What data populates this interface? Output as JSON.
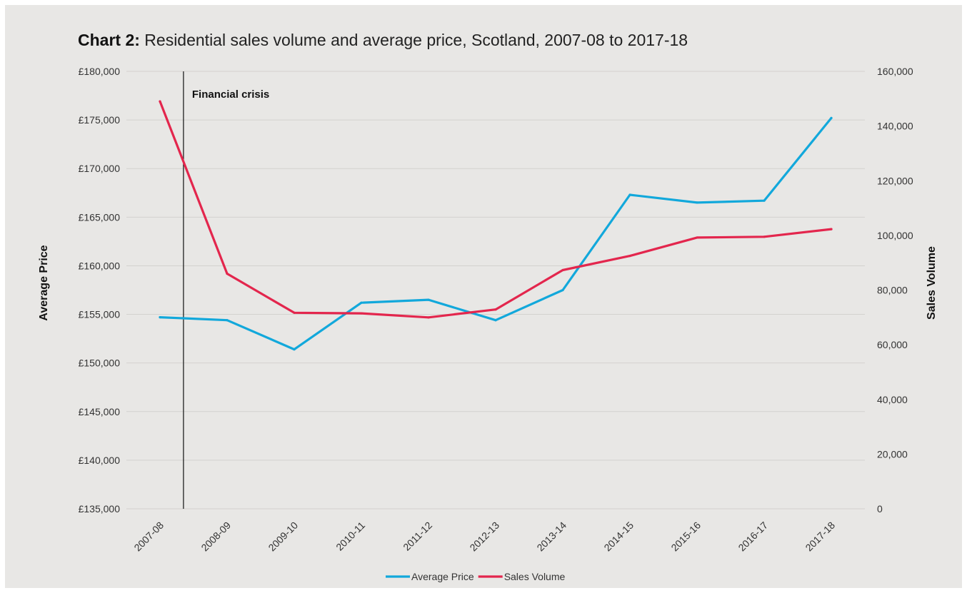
{
  "chart_data": {
    "type": "line",
    "title_prefix": "Chart 2:",
    "title": "Residential sales volume and average price, Scotland, 2007-08 to 2017-18",
    "categories": [
      "2007-08",
      "2008-09",
      "2009-10",
      "2010-11",
      "2011-12",
      "2012-13",
      "2013-14",
      "2014-15",
      "2015-16",
      "2016-17",
      "2017-18"
    ],
    "y_left": {
      "label": "Average Price",
      "range": [
        135000,
        180000
      ],
      "ticks": [
        135000,
        140000,
        145000,
        150000,
        155000,
        160000,
        165000,
        170000,
        175000,
        180000
      ],
      "tick_labels": [
        "£135,000",
        "£140,000",
        "£145,000",
        "£150,000",
        "£155,000",
        "£160,000",
        "£165,000",
        "£170,000",
        "£175,000",
        "£180,000"
      ]
    },
    "y_right": {
      "label": "Sales Volume",
      "range": [
        0,
        160000
      ],
      "ticks": [
        0,
        20000,
        40000,
        60000,
        80000,
        100000,
        120000,
        140000,
        160000
      ],
      "tick_labels": [
        "0",
        "20,000",
        "40,000",
        "60,000",
        "80,000",
        "100,000",
        "120,000",
        "140,000",
        "160,000"
      ]
    },
    "series": [
      {
        "name": "Average Price",
        "axis": "left",
        "color": "#12a8db",
        "values": [
          154700,
          154400,
          151400,
          156200,
          156500,
          154400,
          157500,
          167300,
          166500,
          166700,
          175200
        ]
      },
      {
        "name": "Sales Volume",
        "axis": "right",
        "color": "#e3264d",
        "values": [
          149000,
          86000,
          71700,
          71500,
          70000,
          72900,
          87300,
          92500,
          99200,
          99500,
          102300
        ]
      }
    ],
    "annotation": {
      "label": "Financial crisis",
      "between_categories": [
        "2007-08",
        "2008-09"
      ],
      "position": 0.35
    },
    "grid": true,
    "legend": "bottom"
  }
}
